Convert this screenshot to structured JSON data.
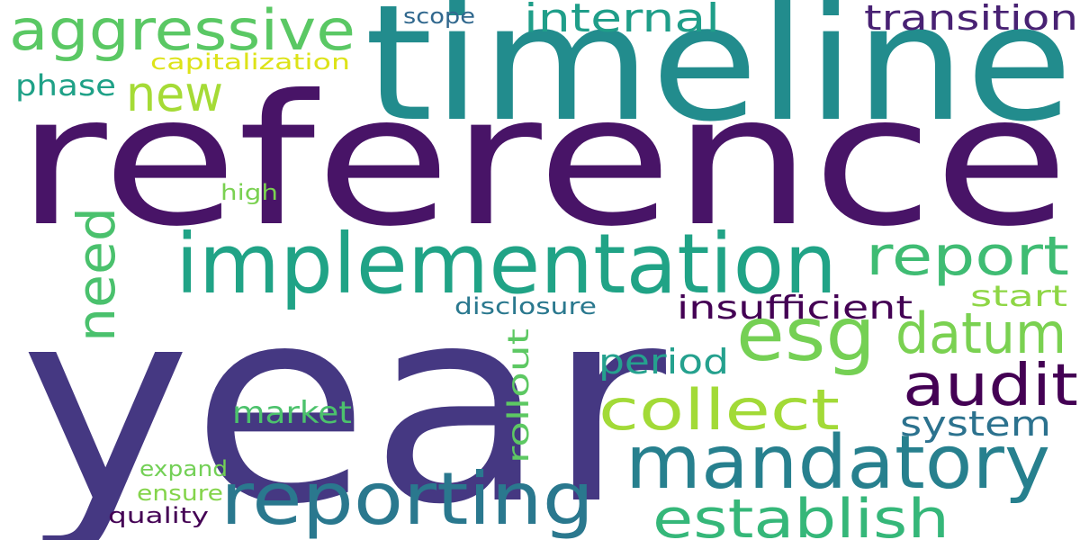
{
  "wordcloud": {
    "words": [
      {
        "text": "reference",
        "color": "#481467"
      },
      {
        "text": "year",
        "color": "#453882"
      },
      {
        "text": "timeline",
        "color": "#228C8D"
      },
      {
        "text": "implementation",
        "color": "#20A386"
      },
      {
        "text": "mandatory",
        "color": "#27808E"
      },
      {
        "text": "reporting",
        "color": "#2A788E"
      },
      {
        "text": "aggressive",
        "color": "#5AC864"
      },
      {
        "text": "esg",
        "color": "#75D054"
      },
      {
        "text": "establish",
        "color": "#35B779"
      },
      {
        "text": "datum",
        "color": "#7AD151"
      },
      {
        "text": "collect",
        "color": "#A2DA37"
      },
      {
        "text": "audit",
        "color": "#440154"
      },
      {
        "text": "report",
        "color": "#3FBC73"
      },
      {
        "text": "need",
        "color": "#4AC16D"
      },
      {
        "text": "new",
        "color": "#A5DB36"
      },
      {
        "text": "internal",
        "color": "#1F9E89"
      },
      {
        "text": "transition",
        "color": "#482173"
      },
      {
        "text": "insufficient",
        "color": "#440154"
      },
      {
        "text": "system",
        "color": "#2C728E"
      },
      {
        "text": "period",
        "color": "#25A18E"
      },
      {
        "text": "market",
        "color": "#4CC26C"
      },
      {
        "text": "rollout",
        "color": "#5DC863"
      },
      {
        "text": "phase",
        "color": "#1FA187"
      },
      {
        "text": "start",
        "color": "#8ED645"
      },
      {
        "text": "disclosure",
        "color": "#2A788E"
      },
      {
        "text": "capitalization",
        "color": "#DDE318"
      },
      {
        "text": "scope",
        "color": "#31688E"
      },
      {
        "text": "high",
        "color": "#7AD151"
      },
      {
        "text": "expand",
        "color": "#73D056"
      },
      {
        "text": "ensure",
        "color": "#84D44B"
      },
      {
        "text": "quality",
        "color": "#440154"
      }
    ]
  }
}
